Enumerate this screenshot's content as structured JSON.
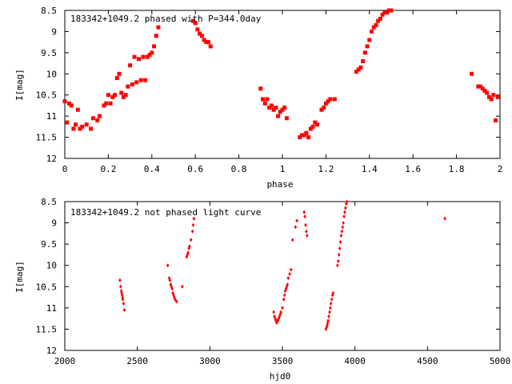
{
  "chart_data": [
    {
      "type": "scatter",
      "title": "183342+1049.2 phased with P=344.0day",
      "xlabel": "phase",
      "ylabel": "I[mag]",
      "xlim": [
        0,
        2
      ],
      "ylim": [
        8.5,
        12
      ],
      "y_inverted": true,
      "grid": false,
      "xticks": [
        0,
        0.2,
        0.4,
        0.6,
        0.8,
        1,
        1.2,
        1.4,
        1.6,
        1.8,
        2
      ],
      "xtick_labels": [
        "0",
        "0.2",
        "0.4",
        "0.6",
        "0.8",
        "1",
        "1.2",
        "1.4",
        "1.6",
        "1.8",
        "2"
      ],
      "yticks": [
        8.5,
        9,
        9.5,
        10,
        10.5,
        11,
        11.5,
        12
      ],
      "ytick_labels": [
        "8.5",
        "9",
        "9.5",
        "10",
        "10.5",
        "11",
        "11.5",
        "12"
      ],
      "marker_color": "#ff0000",
      "series": [
        {
          "x": [
            0.0,
            0.01,
            0.02,
            0.03,
            0.04,
            0.05,
            0.06,
            0.07,
            0.08,
            0.1,
            0.12,
            0.13,
            0.15,
            0.16,
            0.18,
            0.19,
            0.2,
            0.21,
            0.22,
            0.23,
            0.24,
            0.25,
            0.26,
            0.27,
            0.28,
            0.29,
            0.3,
            0.31,
            0.32,
            0.33,
            0.34,
            0.35,
            0.36,
            0.37,
            0.38,
            0.39,
            0.4,
            0.41,
            0.42,
            0.43,
            0.59,
            0.6,
            0.61,
            0.62,
            0.63,
            0.64,
            0.65,
            0.66,
            0.67,
            0.9,
            0.91,
            0.92,
            0.93,
            0.94,
            0.95,
            0.96,
            0.97,
            0.98,
            0.99,
            1.0,
            1.01,
            1.02,
            1.08,
            1.09,
            1.1,
            1.11,
            1.12,
            1.13,
            1.14,
            1.15,
            1.16,
            1.18,
            1.19,
            1.2,
            1.21,
            1.22,
            1.24,
            1.34,
            1.35,
            1.36,
            1.37,
            1.38,
            1.39,
            1.4,
            1.41,
            1.42,
            1.43,
            1.44,
            1.45,
            1.46,
            1.47,
            1.48,
            1.49,
            1.5,
            1.87,
            1.9,
            1.91,
            1.92,
            1.93,
            1.94,
            1.95,
            1.96,
            1.97,
            1.98,
            1.99
          ],
          "y": [
            10.65,
            11.15,
            10.7,
            10.75,
            11.3,
            11.2,
            10.85,
            11.3,
            11.25,
            11.2,
            11.3,
            11.05,
            11.1,
            11.0,
            10.75,
            10.7,
            10.5,
            10.7,
            10.55,
            10.5,
            10.1,
            10.0,
            10.45,
            10.55,
            10.5,
            10.3,
            9.8,
            10.25,
            9.6,
            10.2,
            9.65,
            10.15,
            9.6,
            10.15,
            9.6,
            9.55,
            9.5,
            9.35,
            9.1,
            8.9,
            8.75,
            8.8,
            8.95,
            9.05,
            9.1,
            9.2,
            9.25,
            9.25,
            9.35,
            10.35,
            10.6,
            10.7,
            10.6,
            10.8,
            10.75,
            10.85,
            10.8,
            11.0,
            10.9,
            10.85,
            10.8,
            11.05,
            11.5,
            11.45,
            11.45,
            11.4,
            11.5,
            11.3,
            11.25,
            11.15,
            11.2,
            10.85,
            10.8,
            10.7,
            10.65,
            10.6,
            10.6,
            9.95,
            9.9,
            9.85,
            9.7,
            9.5,
            9.35,
            9.2,
            9.0,
            8.9,
            8.85,
            8.75,
            8.7,
            8.6,
            8.55,
            8.55,
            8.5,
            8.5,
            10.0,
            10.3,
            10.3,
            10.35,
            10.4,
            10.45,
            10.55,
            10.6,
            10.5,
            11.1,
            10.55
          ]
        }
      ]
    },
    {
      "type": "scatter",
      "title": "183342+1049.2 not phased light curve",
      "xlabel": "hjd0",
      "ylabel": "I[mag]",
      "xlim": [
        2000,
        5000
      ],
      "ylim": [
        8.5,
        12
      ],
      "y_inverted": true,
      "grid": false,
      "xticks": [
        2000,
        2500,
        3000,
        3500,
        4000,
        4500,
        5000
      ],
      "xtick_labels": [
        "2000",
        "2500",
        "3000",
        "3500",
        "4000",
        "4500",
        "5000"
      ],
      "yticks": [
        8.5,
        9,
        9.5,
        10,
        10.5,
        11,
        11.5,
        12
      ],
      "ytick_labels": [
        "8.5",
        "9",
        "9.5",
        "10",
        "10.5",
        "11",
        "11.5",
        "12"
      ],
      "marker_color": "#ff0000",
      "series": [
        {
          "x": [
            2380,
            2385,
            2390,
            2392,
            2395,
            2398,
            2400,
            2405,
            2410,
            2710,
            2720,
            2725,
            2730,
            2735,
            2740,
            2745,
            2750,
            2755,
            2760,
            2770,
            2810,
            2840,
            2845,
            2850,
            2855,
            2860,
            2870,
            2880,
            2885,
            2890,
            3440,
            3445,
            3450,
            3455,
            3460,
            3465,
            3470,
            3475,
            3480,
            3485,
            3490,
            3500,
            3510,
            3515,
            3520,
            3525,
            3530,
            3535,
            3540,
            3550,
            3560,
            3570,
            3590,
            3600,
            3650,
            3655,
            3660,
            3665,
            3670,
            3800,
            3805,
            3810,
            3812,
            3815,
            3820,
            3825,
            3830,
            3835,
            3840,
            3845,
            3850,
            3880,
            3885,
            3890,
            3895,
            3900,
            3905,
            3910,
            3915,
            3920,
            3925,
            3930,
            3935,
            3940,
            3945,
            4620
          ],
          "y": [
            10.35,
            10.5,
            10.6,
            10.65,
            10.7,
            10.75,
            10.8,
            10.9,
            11.05,
            10.0,
            10.3,
            10.35,
            10.45,
            10.5,
            10.55,
            10.65,
            10.7,
            10.75,
            10.8,
            10.85,
            10.5,
            9.8,
            9.75,
            9.7,
            9.6,
            9.55,
            9.4,
            9.2,
            9.05,
            8.9,
            11.1,
            11.2,
            11.25,
            11.3,
            11.35,
            11.3,
            11.3,
            11.25,
            11.2,
            11.15,
            11.1,
            11.0,
            10.8,
            10.7,
            10.6,
            10.55,
            10.5,
            10.45,
            10.3,
            10.2,
            10.1,
            9.4,
            9.1,
            8.95,
            8.75,
            8.85,
            9.05,
            9.2,
            9.3,
            11.5,
            11.45,
            11.4,
            11.35,
            11.3,
            11.2,
            11.1,
            11.0,
            10.9,
            10.8,
            10.7,
            10.65,
            10.0,
            9.9,
            9.75,
            9.6,
            9.45,
            9.3,
            9.2,
            9.1,
            9.0,
            8.85,
            8.75,
            8.65,
            8.55,
            8.5,
            8.9
          ]
        }
      ]
    }
  ]
}
